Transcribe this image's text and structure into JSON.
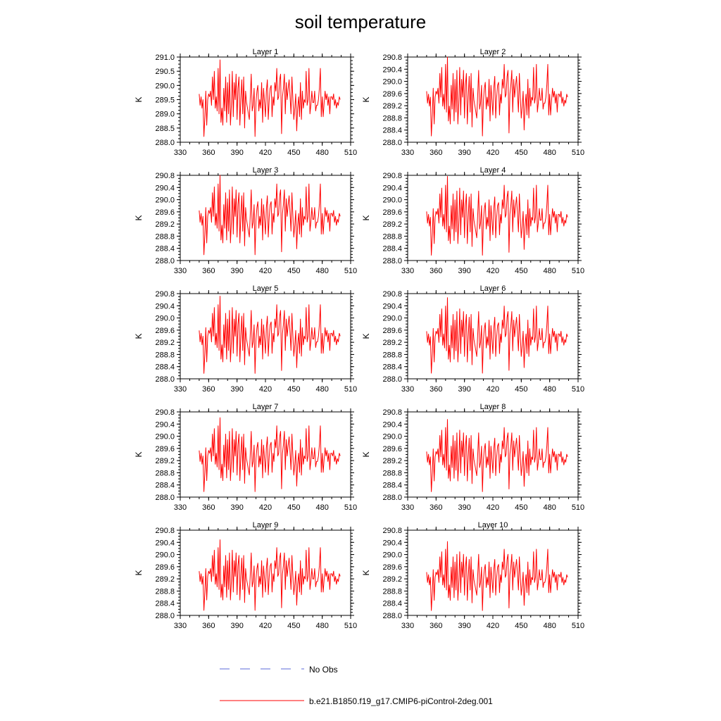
{
  "figure": {
    "title": "soil temperature"
  },
  "legend": {
    "items": [
      {
        "label": "No Obs",
        "color": "#5b6bd8",
        "dash": "dashed"
      },
      {
        "label": "b.e21.B1850.f19_g17.CMIP6-piControl-2deg.001",
        "color": "#ff0000",
        "dash": "solid"
      }
    ]
  },
  "chart_data": {
    "type": "line",
    "panels": [
      {
        "title": "Layer 1",
        "ylabel": "K",
        "ylim": [
          288.0,
          291.0
        ],
        "yticks": [
          288.0,
          288.5,
          289.0,
          289.5,
          290.0,
          290.5,
          291.0
        ],
        "xlim": [
          330,
          510
        ],
        "xticks": [
          330,
          360,
          390,
          420,
          450,
          480,
          510
        ],
        "offset": 0.0,
        "amp": 1.0
      },
      {
        "title": "Layer 2",
        "ylabel": "K",
        "ylim": [
          288.0,
          290.8
        ],
        "yticks": [
          288.0,
          288.4,
          288.8,
          289.2,
          289.6,
          290.0,
          290.4,
          290.8
        ],
        "xlim": [
          330,
          510
        ],
        "xticks": [
          330,
          360,
          390,
          420,
          450,
          480,
          510
        ],
        "offset": -0.02,
        "amp": 0.98
      },
      {
        "title": "Layer 3",
        "ylabel": "K",
        "ylim": [
          288.0,
          290.8
        ],
        "yticks": [
          288.0,
          288.4,
          288.8,
          289.2,
          289.6,
          290.0,
          290.4,
          290.8
        ],
        "xlim": [
          330,
          510
        ],
        "xticks": [
          330,
          360,
          390,
          420,
          450,
          480,
          510
        ],
        "offset": -0.05,
        "amp": 0.97
      },
      {
        "title": "Layer 4",
        "ylabel": "K",
        "ylim": [
          288.0,
          290.8
        ],
        "yticks": [
          288.0,
          288.4,
          288.8,
          289.2,
          289.6,
          290.0,
          290.4,
          290.8
        ],
        "xlim": [
          330,
          510
        ],
        "xticks": [
          330,
          360,
          390,
          420,
          450,
          480,
          510
        ],
        "offset": -0.08,
        "amp": 0.96
      },
      {
        "title": "Layer 5",
        "ylabel": "K",
        "ylim": [
          288.0,
          290.8
        ],
        "yticks": [
          288.0,
          288.4,
          288.8,
          289.2,
          289.6,
          290.0,
          290.4,
          290.8
        ],
        "xlim": [
          330,
          510
        ],
        "xticks": [
          330,
          360,
          390,
          420,
          450,
          480,
          510
        ],
        "offset": -0.1,
        "amp": 0.94
      },
      {
        "title": "Layer 6",
        "ylabel": "K",
        "ylim": [
          288.0,
          290.8
        ],
        "yticks": [
          288.0,
          288.4,
          288.8,
          289.2,
          289.6,
          290.0,
          290.4,
          290.8
        ],
        "xlim": [
          330,
          510
        ],
        "xticks": [
          330,
          360,
          390,
          420,
          450,
          480,
          510
        ],
        "offset": -0.12,
        "amp": 0.92
      },
      {
        "title": "Layer 7",
        "ylabel": "K",
        "ylim": [
          288.0,
          290.8
        ],
        "yticks": [
          288.0,
          288.4,
          288.8,
          289.2,
          289.6,
          290.0,
          290.4,
          290.8
        ],
        "xlim": [
          330,
          510
        ],
        "xticks": [
          330,
          360,
          390,
          420,
          450,
          480,
          510
        ],
        "offset": -0.15,
        "amp": 0.9
      },
      {
        "title": "Layer 8",
        "ylabel": "K",
        "ylim": [
          288.0,
          290.8
        ],
        "yticks": [
          288.0,
          288.4,
          288.8,
          289.2,
          289.6,
          290.0,
          290.4,
          290.8
        ],
        "xlim": [
          330,
          510
        ],
        "xticks": [
          330,
          360,
          390,
          420,
          450,
          480,
          510
        ],
        "offset": -0.18,
        "amp": 0.88
      },
      {
        "title": "Layer 9",
        "ylabel": "K",
        "ylim": [
          288.0,
          290.8
        ],
        "yticks": [
          288.0,
          288.4,
          288.8,
          289.2,
          289.6,
          290.0,
          290.4,
          290.8
        ],
        "xlim": [
          330,
          510
        ],
        "xticks": [
          330,
          360,
          390,
          420,
          450,
          480,
          510
        ],
        "offset": -0.22,
        "amp": 0.86
      },
      {
        "title": "Layer 10",
        "ylabel": "K",
        "ylim": [
          288.0,
          290.8
        ],
        "yticks": [
          288.0,
          288.4,
          288.8,
          289.2,
          289.6,
          290.0,
          290.4,
          290.8
        ],
        "xlim": [
          330,
          510
        ],
        "xticks": [
          330,
          360,
          390,
          420,
          450,
          480,
          510
        ],
        "offset": -0.25,
        "amp": 0.84
      }
    ],
    "x": [
      350,
      351,
      352,
      353,
      354,
      355,
      356,
      357,
      358,
      359,
      360,
      361,
      362,
      363,
      364,
      365,
      366,
      367,
      368,
      369,
      370,
      371,
      372,
      373,
      374,
      375,
      376,
      377,
      378,
      379,
      380,
      381,
      382,
      383,
      384,
      385,
      386,
      387,
      388,
      389,
      390,
      391,
      392,
      393,
      394,
      395,
      396,
      397,
      398,
      399,
      400,
      401,
      402,
      403,
      404,
      405,
      406,
      407,
      408,
      409,
      410,
      411,
      412,
      413,
      414,
      415,
      416,
      417,
      418,
      419,
      420,
      421,
      422,
      423,
      424,
      425,
      426,
      427,
      428,
      429,
      430,
      431,
      432,
      433,
      434,
      435,
      436,
      437,
      438,
      439,
      440,
      441,
      442,
      443,
      444,
      445,
      446,
      447,
      448,
      449,
      450,
      451,
      452,
      453,
      454,
      455,
      456,
      457,
      458,
      459,
      460,
      461,
      462,
      463,
      464,
      465,
      466,
      467,
      468,
      469,
      470,
      471,
      472,
      473,
      474,
      475,
      476,
      477,
      478,
      479,
      480,
      481,
      482,
      483,
      484,
      485,
      486,
      487,
      488,
      489,
      490,
      491,
      492,
      493,
      494,
      495,
      496,
      497,
      498,
      499
    ],
    "base_series": [
      289.7,
      289.3,
      289.6,
      289.2,
      289.5,
      288.2,
      288.9,
      289.8,
      288.6,
      289.5,
      289.7,
      289.6,
      289.8,
      289.3,
      290.3,
      289.5,
      290.5,
      289.2,
      289.6,
      289.1,
      290.6,
      289.0,
      290.9,
      288.7,
      289.2,
      288.6,
      289.9,
      289.1,
      290.3,
      288.7,
      290.1,
      289.0,
      290.4,
      288.6,
      289.3,
      290.5,
      288.9,
      290.1,
      289.5,
      290.4,
      288.8,
      289.9,
      290.3,
      288.6,
      289.5,
      290.2,
      289.0,
      290.3,
      288.5,
      289.8,
      289.4,
      289.2,
      289.0,
      288.8,
      289.6,
      290.4,
      289.1,
      289.3,
      289.9,
      288.2,
      289.4,
      289.8,
      290.0,
      289.1,
      289.5,
      289.2,
      290.1,
      288.7,
      289.9,
      289.4,
      288.9,
      289.8,
      290.2,
      288.8,
      289.5,
      289.9,
      290.0,
      288.9,
      289.6,
      289.3,
      290.1,
      289.8,
      290.6,
      289.5,
      289.6,
      290.2,
      290.4,
      288.3,
      289.6,
      289.9,
      290.4,
      289.0,
      290.1,
      289.5,
      289.9,
      290.2,
      289.6,
      289.0,
      290.3,
      289.5,
      288.8,
      289.2,
      289.7,
      288.4,
      289.2,
      289.6,
      288.9,
      290.1,
      288.8,
      289.8,
      289.2,
      289.5,
      289.4,
      290.5,
      289.3,
      289.5,
      290.6,
      289.0,
      289.3,
      289.8,
      289.4,
      289.4,
      289.8,
      289.1,
      289.3,
      289.3,
      289.5,
      289.9,
      290.6,
      288.9,
      289.6,
      288.9,
      289.4,
      289.8,
      289.5,
      289.7,
      289.3,
      289.6,
      289.0,
      289.6,
      289.6,
      289.5,
      289.7,
      289.3,
      289.5,
      289.2,
      289.4,
      289.3,
      289.6,
      289.5
    ]
  }
}
